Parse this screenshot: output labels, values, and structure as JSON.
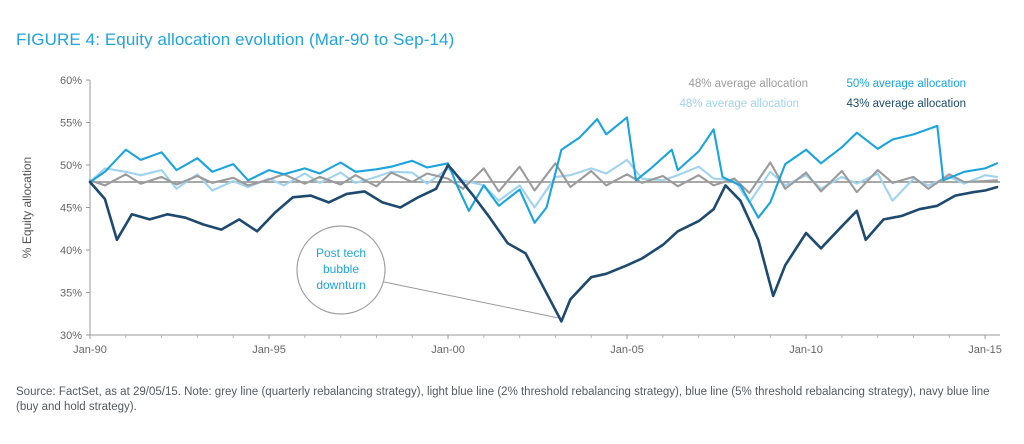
{
  "figure_title": "FIGURE 4: Equity allocation evolution (Mar-90 to Sep-14)",
  "source_note": "Source: FactSet, as at 29/05/15. Note: grey line (quarterly rebalancing strategy), light blue line (2% threshold rebalancing strategy), blue line (5% threshold rebalancing strategy), navy blue line (buy and hold strategy).",
  "colors": {
    "grey": "#9b9b9b",
    "light_blue": "#9fd3f0",
    "blue": "#1aa3dd",
    "navy": "#1d4a6e",
    "reference_line": "#8c8c8c",
    "title": "#21a3dc"
  },
  "chart_data": {
    "type": "line",
    "title": "FIGURE 4: Equity allocation evolution (Mar-90 to Sep-14)",
    "ylabel": "% Equity allocation",
    "xlabel": "",
    "x_axis": "date",
    "xlim": [
      "1990-01",
      "2015-06"
    ],
    "ylim": [
      30,
      60
    ],
    "x_ticks": [
      "Jan-90",
      "Jan-95",
      "Jan-00",
      "Jan-05",
      "Jan-10",
      "Jan-15"
    ],
    "y_ticks": [
      "30%",
      "35%",
      "40%",
      "45%",
      "50%",
      "55%",
      "60%"
    ],
    "grid": false,
    "reference_line": {
      "y": 48
    },
    "legend": {
      "placement": "top-right",
      "entries": [
        {
          "label": "48% average allocation",
          "color": "#9b9b9b"
        },
        {
          "label": "50% average allocation",
          "color": "#1aa3dd"
        },
        {
          "label": "48% average allocation",
          "color": "#9fd3f0"
        },
        {
          "label": "43% average allocation",
          "color": "#1d4a6e"
        }
      ]
    },
    "annotation": {
      "text_lines": [
        "Post tech",
        "bubble",
        "downturn"
      ],
      "points_to": {
        "x": "2003-03",
        "y": 31.8
      }
    },
    "series": [
      {
        "label": "48% average allocation",
        "color": "#9b9b9b",
        "points": [
          [
            "1990-01",
            48.2
          ],
          [
            "1990-06",
            47.6
          ],
          [
            "1991-01",
            48.9
          ],
          [
            "1991-06",
            47.8
          ],
          [
            "1992-01",
            48.6
          ],
          [
            "1992-06",
            47.7
          ],
          [
            "1993-01",
            48.7
          ],
          [
            "1993-06",
            47.9
          ],
          [
            "1994-01",
            48.5
          ],
          [
            "1994-06",
            47.6
          ],
          [
            "1995-01",
            48.3
          ],
          [
            "1995-06",
            48.9
          ],
          [
            "1996-01",
            47.8
          ],
          [
            "1996-06",
            48.6
          ],
          [
            "1997-01",
            47.7
          ],
          [
            "1997-06",
            48.8
          ],
          [
            "1998-01",
            47.5
          ],
          [
            "1998-06",
            49.1
          ],
          [
            "1999-01",
            48.0
          ],
          [
            "1999-06",
            49.0
          ],
          [
            "2000-01",
            48.4
          ],
          [
            "2000-06",
            47.2
          ],
          [
            "2001-01",
            49.6
          ],
          [
            "2001-06",
            46.9
          ],
          [
            "2002-01",
            49.8
          ],
          [
            "2002-06",
            47.0
          ],
          [
            "2003-01",
            50.2
          ],
          [
            "2003-06",
            47.4
          ],
          [
            "2004-01",
            49.3
          ],
          [
            "2004-06",
            47.6
          ],
          [
            "2005-01",
            48.9
          ],
          [
            "2005-06",
            47.9
          ],
          [
            "2006-01",
            48.7
          ],
          [
            "2006-06",
            47.5
          ],
          [
            "2007-01",
            48.8
          ],
          [
            "2007-06",
            47.6
          ],
          [
            "2008-01",
            48.4
          ],
          [
            "2008-06",
            46.7
          ],
          [
            "2009-01",
            50.3
          ],
          [
            "2009-06",
            47.2
          ],
          [
            "2010-01",
            49.1
          ],
          [
            "2010-06",
            46.9
          ],
          [
            "2011-01",
            49.3
          ],
          [
            "2011-06",
            46.8
          ],
          [
            "2012-01",
            49.4
          ],
          [
            "2012-06",
            47.9
          ],
          [
            "2013-01",
            48.6
          ],
          [
            "2013-06",
            47.2
          ],
          [
            "2014-01",
            48.9
          ],
          [
            "2014-06",
            48.0
          ],
          [
            "2015-01",
            48.1
          ],
          [
            "2015-05",
            48.2
          ]
        ]
      },
      {
        "label": "50% average allocation",
        "color": "#1aa3dd",
        "points": [
          [
            "1990-01",
            48.0
          ],
          [
            "1990-06",
            49.2
          ],
          [
            "1991-01",
            51.8
          ],
          [
            "1991-06",
            50.6
          ],
          [
            "1992-01",
            51.5
          ],
          [
            "1992-06",
            49.4
          ],
          [
            "1993-01",
            50.8
          ],
          [
            "1993-06",
            49.2
          ],
          [
            "1994-01",
            50.1
          ],
          [
            "1994-06",
            48.2
          ],
          [
            "1995-01",
            49.4
          ],
          [
            "1995-06",
            48.9
          ],
          [
            "1996-01",
            49.6
          ],
          [
            "1996-06",
            49.0
          ],
          [
            "1997-01",
            50.3
          ],
          [
            "1997-06",
            49.2
          ],
          [
            "1998-01",
            49.5
          ],
          [
            "1998-06",
            49.8
          ],
          [
            "1999-01",
            50.5
          ],
          [
            "1999-06",
            49.7
          ],
          [
            "2000-01",
            50.2
          ],
          [
            "2000-04",
            47.6
          ],
          [
            "2000-08",
            44.6
          ],
          [
            "2001-01",
            47.6
          ],
          [
            "2001-06",
            45.2
          ],
          [
            "2002-01",
            47.1
          ],
          [
            "2002-06",
            43.2
          ],
          [
            "2002-10",
            45.0
          ],
          [
            "2003-03",
            51.8
          ],
          [
            "2003-09",
            53.2
          ],
          [
            "2004-03",
            55.4
          ],
          [
            "2004-06",
            53.6
          ],
          [
            "2005-01",
            55.6
          ],
          [
            "2005-04",
            48.2
          ],
          [
            "2005-09",
            49.6
          ],
          [
            "2006-04",
            51.8
          ],
          [
            "2006-06",
            49.4
          ],
          [
            "2007-01",
            51.6
          ],
          [
            "2007-06",
            54.2
          ],
          [
            "2007-09",
            48.6
          ],
          [
            "2008-03",
            47.6
          ],
          [
            "2008-09",
            43.8
          ],
          [
            "2009-01",
            45.6
          ],
          [
            "2009-06",
            50.1
          ],
          [
            "2010-01",
            51.8
          ],
          [
            "2010-06",
            50.2
          ],
          [
            "2011-01",
            52.1
          ],
          [
            "2011-06",
            53.8
          ],
          [
            "2012-01",
            51.9
          ],
          [
            "2012-06",
            53.0
          ],
          [
            "2013-01",
            53.6
          ],
          [
            "2013-09",
            54.6
          ],
          [
            "2013-11",
            48.2
          ],
          [
            "2014-06",
            49.2
          ],
          [
            "2015-01",
            49.6
          ],
          [
            "2015-05",
            50.2
          ]
        ]
      },
      {
        "label": "48% average allocation",
        "color": "#9fd3f0",
        "points": [
          [
            "1990-01",
            48.0
          ],
          [
            "1990-06",
            49.6
          ],
          [
            "1991-01",
            49.2
          ],
          [
            "1991-06",
            48.8
          ],
          [
            "1992-01",
            49.4
          ],
          [
            "1992-06",
            47.2
          ],
          [
            "1993-01",
            48.9
          ],
          [
            "1993-06",
            47.0
          ],
          [
            "1994-01",
            48.1
          ],
          [
            "1994-06",
            47.4
          ],
          [
            "1995-01",
            48.4
          ],
          [
            "1995-06",
            47.6
          ],
          [
            "1996-01",
            49.0
          ],
          [
            "1996-06",
            47.9
          ],
          [
            "1997-01",
            49.1
          ],
          [
            "1997-06",
            47.9
          ],
          [
            "1998-01",
            48.6
          ],
          [
            "1998-06",
            49.2
          ],
          [
            "1999-01",
            49.1
          ],
          [
            "1999-06",
            47.8
          ],
          [
            "2000-01",
            49.6
          ],
          [
            "2000-06",
            48.2
          ],
          [
            "2001-01",
            47.6
          ],
          [
            "2001-06",
            45.8
          ],
          [
            "2002-01",
            47.6
          ],
          [
            "2002-06",
            45.0
          ],
          [
            "2003-01",
            48.6
          ],
          [
            "2003-06",
            48.8
          ],
          [
            "2004-01",
            49.6
          ],
          [
            "2004-06",
            49.0
          ],
          [
            "2005-01",
            50.6
          ],
          [
            "2005-06",
            48.4
          ],
          [
            "2006-01",
            48.2
          ],
          [
            "2006-06",
            48.8
          ],
          [
            "2007-01",
            49.8
          ],
          [
            "2007-06",
            48.4
          ],
          [
            "2008-01",
            48.2
          ],
          [
            "2008-06",
            45.6
          ],
          [
            "2009-01",
            49.2
          ],
          [
            "2009-06",
            47.6
          ],
          [
            "2010-01",
            48.8
          ],
          [
            "2010-06",
            47.2
          ],
          [
            "2011-01",
            48.6
          ],
          [
            "2011-06",
            47.8
          ],
          [
            "2012-01",
            49.0
          ],
          [
            "2012-06",
            45.8
          ],
          [
            "2013-01",
            48.4
          ],
          [
            "2013-06",
            47.6
          ],
          [
            "2014-01",
            48.6
          ],
          [
            "2014-06",
            47.8
          ],
          [
            "2015-01",
            48.8
          ],
          [
            "2015-05",
            48.6
          ]
        ]
      },
      {
        "label": "43% average allocation",
        "color": "#1d4a6e",
        "points": [
          [
            "1990-01",
            48.0
          ],
          [
            "1990-06",
            46.0
          ],
          [
            "1990-10",
            41.2
          ],
          [
            "1991-03",
            44.2
          ],
          [
            "1991-09",
            43.6
          ],
          [
            "1992-03",
            44.2
          ],
          [
            "1992-09",
            43.8
          ],
          [
            "1993-03",
            43.0
          ],
          [
            "1993-09",
            42.4
          ],
          [
            "1994-03",
            43.6
          ],
          [
            "1994-09",
            42.2
          ],
          [
            "1995-03",
            44.4
          ],
          [
            "1995-09",
            46.2
          ],
          [
            "1996-03",
            46.4
          ],
          [
            "1996-09",
            45.6
          ],
          [
            "1997-03",
            46.6
          ],
          [
            "1997-09",
            46.9
          ],
          [
            "1998-03",
            45.6
          ],
          [
            "1998-09",
            45.0
          ],
          [
            "1999-03",
            46.2
          ],
          [
            "1999-09",
            47.2
          ],
          [
            "2000-01",
            50.0
          ],
          [
            "2000-03",
            49.2
          ],
          [
            "2000-09",
            46.6
          ],
          [
            "2001-03",
            43.8
          ],
          [
            "2001-09",
            40.8
          ],
          [
            "2002-03",
            39.6
          ],
          [
            "2002-09",
            35.6
          ],
          [
            "2003-03",
            31.6
          ],
          [
            "2003-06",
            34.2
          ],
          [
            "2004-01",
            36.8
          ],
          [
            "2004-06",
            37.2
          ],
          [
            "2005-01",
            38.2
          ],
          [
            "2005-06",
            39.0
          ],
          [
            "2006-01",
            40.6
          ],
          [
            "2006-06",
            42.2
          ],
          [
            "2007-01",
            43.4
          ],
          [
            "2007-06",
            44.8
          ],
          [
            "2007-10",
            47.6
          ],
          [
            "2008-03",
            45.8
          ],
          [
            "2008-09",
            41.2
          ],
          [
            "2009-02",
            34.6
          ],
          [
            "2009-06",
            38.2
          ],
          [
            "2010-01",
            42.0
          ],
          [
            "2010-06",
            40.2
          ],
          [
            "2011-01",
            42.8
          ],
          [
            "2011-06",
            44.6
          ],
          [
            "2011-09",
            41.2
          ],
          [
            "2012-03",
            43.6
          ],
          [
            "2012-09",
            44.0
          ],
          [
            "2013-03",
            44.8
          ],
          [
            "2013-09",
            45.2
          ],
          [
            "2014-03",
            46.4
          ],
          [
            "2014-09",
            46.8
          ],
          [
            "2015-01",
            47.0
          ],
          [
            "2015-05",
            47.4
          ]
        ]
      }
    ]
  }
}
